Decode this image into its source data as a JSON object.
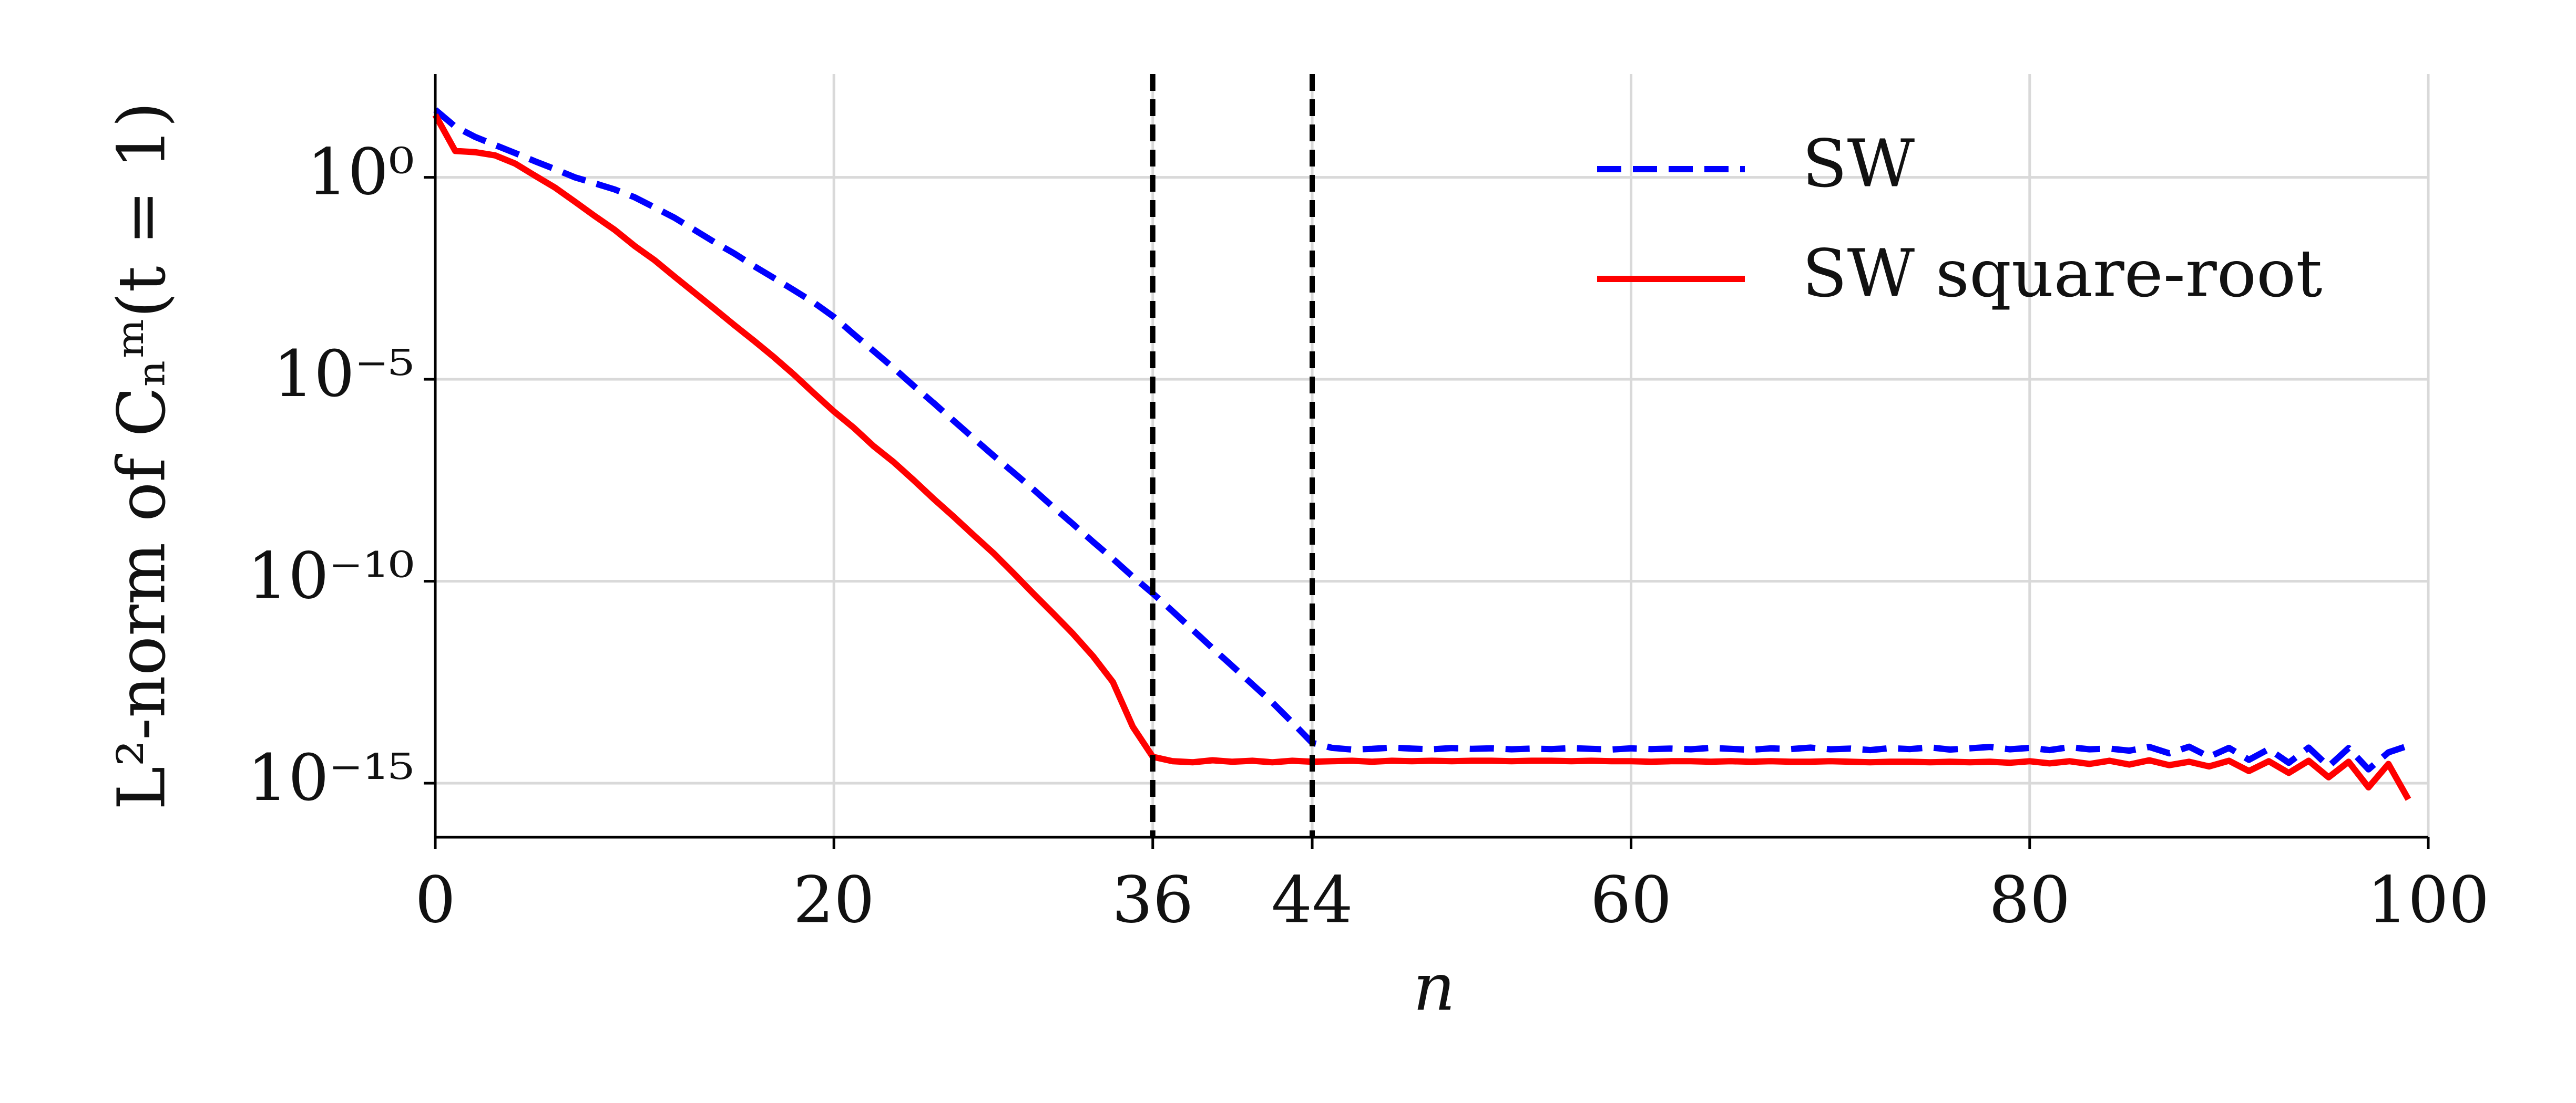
{
  "chart_data": {
    "type": "line",
    "x_label": "n",
    "y_label": "L²-norm of Cₙᵐ(t = 1)",
    "y_scale": "log",
    "grid": true,
    "legend_position": "upper right",
    "xlim": [
      0,
      100
    ],
    "xticks": [
      0,
      20,
      36,
      44,
      60,
      80,
      100
    ],
    "ylim": [
      4.6e-17,
      360
    ],
    "yticks": [
      {
        "value": 1,
        "label": "10⁰"
      },
      {
        "value": 1e-05,
        "label": "10⁻⁵"
      },
      {
        "value": 1e-10,
        "label": "10⁻¹⁰"
      },
      {
        "value": 1e-15,
        "label": "10⁻¹⁵"
      }
    ],
    "vlines": [
      36,
      44
    ],
    "x": [
      0,
      1,
      2,
      3,
      4,
      5,
      6,
      7,
      8,
      9,
      10,
      11,
      12,
      13,
      14,
      15,
      16,
      17,
      18,
      19,
      20,
      21,
      22,
      23,
      24,
      25,
      26,
      27,
      28,
      29,
      30,
      31,
      32,
      33,
      34,
      35,
      36,
      37,
      38,
      39,
      40,
      41,
      42,
      43,
      44,
      45,
      46,
      47,
      48,
      49,
      50,
      51,
      52,
      53,
      54,
      55,
      56,
      57,
      58,
      59,
      60,
      61,
      62,
      63,
      64,
      65,
      66,
      67,
      68,
      69,
      70,
      71,
      72,
      73,
      74,
      75,
      76,
      77,
      78,
      79,
      80,
      81,
      82,
      83,
      84,
      85,
      86,
      87,
      88,
      89,
      90,
      91,
      92,
      93,
      94,
      95,
      96,
      97,
      98,
      99
    ],
    "series": [
      {
        "name": "SW",
        "color": "#0000ff",
        "dash": true,
        "values": [
          47,
          18,
          10,
          6.3,
          4.0,
          2.5,
          1.6,
          1.0,
          0.71,
          0.5,
          0.32,
          0.18,
          0.1,
          0.05,
          0.025,
          0.013,
          0.0063,
          0.0032,
          0.0016,
          0.00079,
          0.00035,
          0.00013,
          5e-05,
          1.9e-05,
          6.9e-06,
          2.6e-06,
          9.5e-07,
          3.5e-07,
          1.3e-07,
          5e-08,
          1.9e-08,
          6.9e-09,
          2.6e-09,
          9.5e-10,
          3.6e-10,
          1.3e-10,
          5e-11,
          1.8e-11,
          6.3e-12,
          2.2e-12,
          7.9e-13,
          2.8e-13,
          1e-13,
          3.2e-14,
          1e-14,
          7.5e-15,
          6.8e-15,
          7.1e-15,
          7.6e-15,
          7.2e-15,
          6.9e-15,
          7.4e-15,
          7.1e-15,
          7.3e-15,
          6.9e-15,
          7.2e-15,
          7e-15,
          7.4e-15,
          7.1e-15,
          6.8e-15,
          7.3e-15,
          7e-15,
          7.2e-15,
          6.9e-15,
          7.5e-15,
          7.1e-15,
          6.7e-15,
          7.3e-15,
          7e-15,
          7.6e-15,
          6.9e-15,
          7.2e-15,
          6.6e-15,
          7.4e-15,
          7e-15,
          7.7e-15,
          6.8e-15,
          7.3e-15,
          7.9e-15,
          6.9e-15,
          7.5e-15,
          6.6e-15,
          7.8e-15,
          6.9e-15,
          7.2e-15,
          6.4e-15,
          7.9e-15,
          5.5e-15,
          8e-15,
          4.5e-15,
          7.5e-15,
          3.8e-15,
          7e-15,
          3.2e-15,
          7.6e-15,
          2.6e-15,
          7.4e-15,
          2.2e-15,
          5.8e-15,
          8.5e-15
        ]
      },
      {
        "name": "SW square-root",
        "color": "#ff0000",
        "dash": false,
        "values": [
          35,
          4.5,
          4.2,
          3.5,
          2.2,
          1.1,
          0.56,
          0.25,
          0.11,
          0.05,
          0.02,
          0.0089,
          0.0035,
          0.0014,
          0.00056,
          0.00022,
          8.9e-05,
          3.5e-05,
          1.3e-05,
          4.5e-06,
          1.6e-06,
          6.3e-07,
          2.2e-07,
          8.9e-08,
          3.2e-08,
          1.1e-08,
          4e-09,
          1.4e-09,
          5e-10,
          1.6e-10,
          5e-11,
          1.6e-11,
          5e-12,
          1.4e-12,
          3.2e-13,
          2.5e-14,
          4.5e-15,
          3.5e-15,
          3.3e-15,
          3.7e-15,
          3.4e-15,
          3.6e-15,
          3.3e-15,
          3.6e-15,
          3.4e-15,
          3.5e-15,
          3.6e-15,
          3.4e-15,
          3.6e-15,
          3.5e-15,
          3.6e-15,
          3.5e-15,
          3.6e-15,
          3.6e-15,
          3.5e-15,
          3.6e-15,
          3.6e-15,
          3.5e-15,
          3.6e-15,
          3.5e-15,
          3.5e-15,
          3.4e-15,
          3.5e-15,
          3.5e-15,
          3.4e-15,
          3.5e-15,
          3.4e-15,
          3.5e-15,
          3.4e-15,
          3.4e-15,
          3.5e-15,
          3.4e-15,
          3.3e-15,
          3.4e-15,
          3.4e-15,
          3.3e-15,
          3.4e-15,
          3.3e-15,
          3.4e-15,
          3.2e-15,
          3.5e-15,
          3.1e-15,
          3.5e-15,
          3e-15,
          3.6e-15,
          2.9e-15,
          3.7e-15,
          2.8e-15,
          3.4e-15,
          2.6e-15,
          3.6e-15,
          2e-15,
          3.5e-15,
          1.8e-15,
          3.6e-15,
          1.4e-15,
          3.4e-15,
          7.9e-16,
          3e-15,
          4e-16
        ]
      }
    ]
  }
}
